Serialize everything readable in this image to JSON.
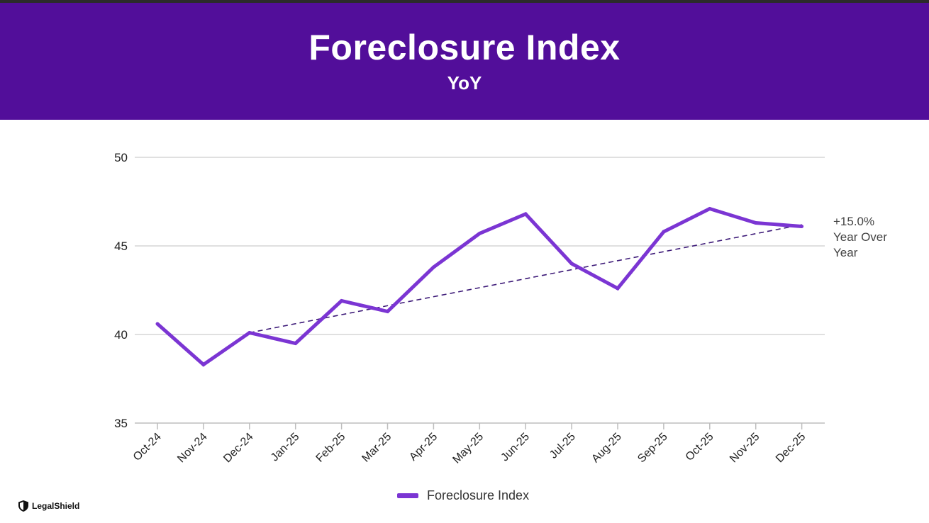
{
  "header": {
    "title": "Foreclosure Index",
    "subtitle": "YoY",
    "background_color": "#520e9a"
  },
  "chart_data": {
    "type": "line",
    "title": "Foreclosure Index",
    "subtitle": "YoY",
    "categories": [
      "Oct-24",
      "Nov-24",
      "Dec-24",
      "Jan-25",
      "Feb-25",
      "Mar-25",
      "Apr-25",
      "May-25",
      "Jun-25",
      "Jul-25",
      "Aug-25",
      "Sep-25",
      "Oct-25",
      "Nov-25",
      "Dec-25"
    ],
    "series": [
      {
        "name": "Foreclosure Index",
        "color": "#7b35d3",
        "values": [
          40.6,
          38.3,
          40.1,
          39.5,
          41.9,
          41.3,
          43.8,
          45.7,
          46.8,
          44.0,
          42.6,
          45.8,
          47.1,
          46.3,
          46.1
        ]
      }
    ],
    "trendline": {
      "from": {
        "x": "Dec-24",
        "y": 40.1
      },
      "to": {
        "x": "Dec-25",
        "y": 46.2
      },
      "style": "dashed",
      "color": "#3d1a78"
    },
    "annotation": [
      "+15.0%",
      "Year Over",
      "Year"
    ],
    "ylim": [
      35,
      50
    ],
    "yticks": [
      35,
      40,
      45,
      50
    ],
    "grid": true,
    "legend": "bottom-center",
    "xlabel": "",
    "ylabel": ""
  },
  "legend": {
    "label": "Foreclosure Index"
  },
  "brand": {
    "name": "LegalShield",
    "icon": "shield-icon"
  }
}
